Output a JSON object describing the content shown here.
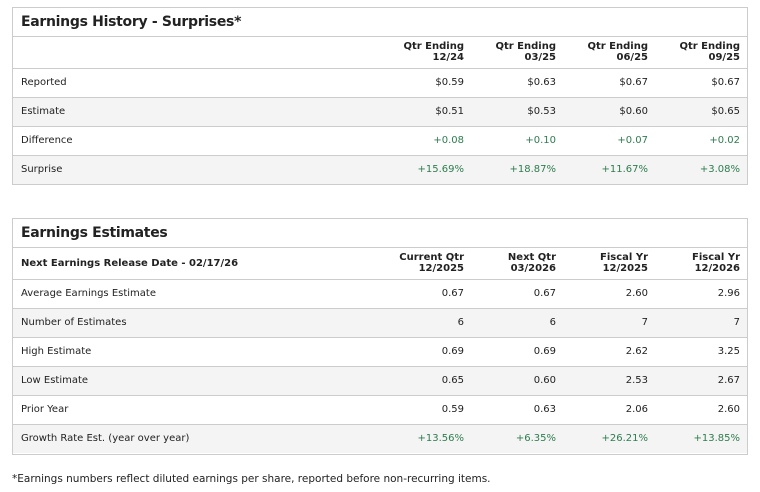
{
  "history": {
    "title": "Earnings History - Surprises*",
    "columns": [
      {
        "line1": "Qtr Ending",
        "line2": "12/24"
      },
      {
        "line1": "Qtr Ending",
        "line2": "03/25"
      },
      {
        "line1": "Qtr Ending",
        "line2": "06/25"
      },
      {
        "line1": "Qtr Ending",
        "line2": "09/25"
      }
    ],
    "rows": [
      {
        "label": "Reported",
        "values": [
          "$0.59",
          "$0.63",
          "$0.67",
          "$0.67"
        ],
        "positive": false
      },
      {
        "label": "Estimate",
        "values": [
          "$0.51",
          "$0.53",
          "$0.60",
          "$0.65"
        ],
        "positive": false
      },
      {
        "label": "Difference",
        "values": [
          "+0.08",
          "+0.10",
          "+0.07",
          "+0.02"
        ],
        "positive": true
      },
      {
        "label": "Surprise",
        "values": [
          "+15.69%",
          "+18.87%",
          "+11.67%",
          "+3.08%"
        ],
        "positive": true
      }
    ]
  },
  "estimates": {
    "title": "Earnings Estimates",
    "header_label": "Next Earnings Release Date - 02/17/26",
    "columns": [
      {
        "line1": "Current Qtr",
        "line2": "12/2025"
      },
      {
        "line1": "Next Qtr",
        "line2": "03/2026"
      },
      {
        "line1": "Fiscal Yr",
        "line2": "12/2025"
      },
      {
        "line1": "Fiscal Yr",
        "line2": "12/2026"
      }
    ],
    "rows": [
      {
        "label": "Average Earnings Estimate",
        "values": [
          "0.67",
          "0.67",
          "2.60",
          "2.96"
        ],
        "positive": false
      },
      {
        "label": "Number of Estimates",
        "values": [
          "6",
          "6",
          "7",
          "7"
        ],
        "positive": false
      },
      {
        "label": "High Estimate",
        "values": [
          "0.69",
          "0.69",
          "2.62",
          "3.25"
        ],
        "positive": false
      },
      {
        "label": "Low Estimate",
        "values": [
          "0.65",
          "0.60",
          "2.53",
          "2.67"
        ],
        "positive": false
      },
      {
        "label": "Prior Year",
        "values": [
          "0.59",
          "0.63",
          "2.06",
          "2.60"
        ],
        "positive": false
      },
      {
        "label": "Growth Rate Est. (year over year)",
        "values": [
          "+13.56%",
          "+6.35%",
          "+26.21%",
          "+13.85%"
        ],
        "positive": true
      }
    ]
  },
  "footnote": "*Earnings numbers reflect diluted earnings per share, reported before non-recurring items.",
  "colors": {
    "positive": "#2e7d4f",
    "alt_row": "#f4f4f4",
    "border": "#cccccc"
  }
}
